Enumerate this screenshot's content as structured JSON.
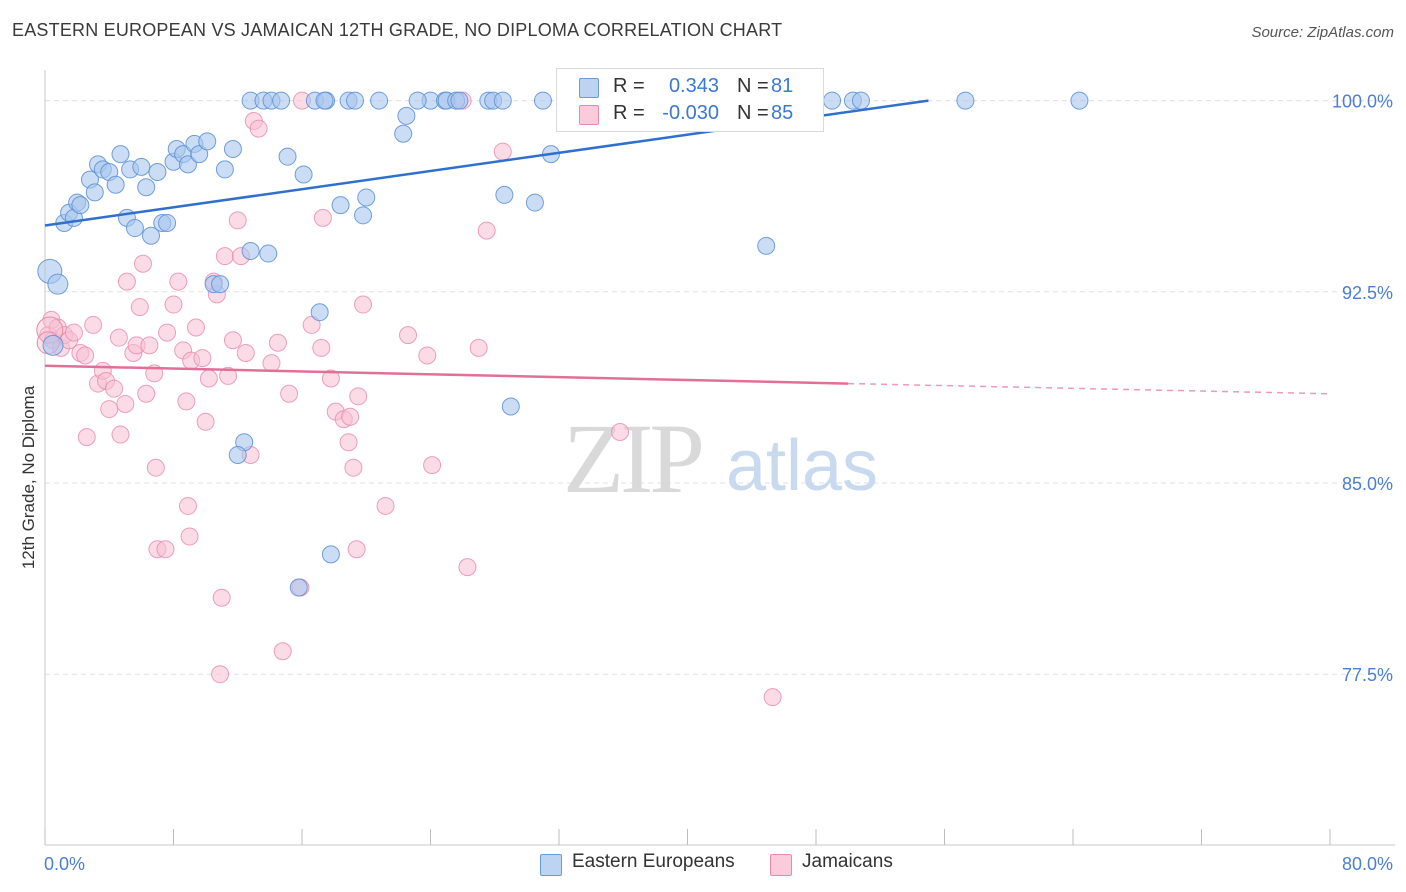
{
  "title": "EASTERN EUROPEAN VS JAMAICAN 12TH GRADE, NO DIPLOMA CORRELATION CHART",
  "source": "Source: ZipAtlas.com",
  "watermark": {
    "zip": "ZIP",
    "atlas": "atlas"
  },
  "legend": {
    "rows": [
      {
        "r_label": "R =",
        "r_value": "0.343",
        "n_label": "N =",
        "n_value": "81"
      },
      {
        "r_label": "R =",
        "r_value": "-0.030",
        "n_label": "N =",
        "n_value": "85"
      }
    ]
  },
  "bottom_legend": [
    {
      "label": "Eastern Europeans"
    },
    {
      "label": "Jamaicans"
    }
  ],
  "chart_data": {
    "type": "scatter",
    "title": "EASTERN EUROPEAN VS JAMAICAN 12TH GRADE, NO DIPLOMA CORRELATION CHART",
    "xlabel": "",
    "ylabel": "12th Grade, No Diploma",
    "xlim": [
      0,
      80
    ],
    "ylim": [
      70.8,
      101.2
    ],
    "x_tick_labels": [
      "0.0%",
      "80.0%"
    ],
    "y_ticks": [
      77.5,
      85.0,
      92.5,
      100.0
    ],
    "y_tick_labels": [
      "77.5%",
      "85.0%",
      "92.5%",
      "100.0%"
    ],
    "grid": true,
    "colors": {
      "blue_fill": "#a9c7ee",
      "blue_stroke": "#5b8fd6",
      "blue_line": "#2f6fd0",
      "pink_fill": "#f7bfd2",
      "pink_stroke": "#e98aab",
      "pink_line": "#e26f98",
      "axis_label": "#4a7fd4",
      "watermark": "#d6d6d6"
    },
    "series": [
      {
        "name": "Eastern Europeans",
        "color": "#a9c7ee",
        "trend": {
          "x": [
            0.0,
            55.0
          ],
          "y": [
            95.1,
            100.0
          ]
        },
        "points": [
          [
            0.3,
            93.3
          ],
          [
            0.5,
            90.4
          ],
          [
            0.8,
            92.8
          ],
          [
            1.2,
            95.2
          ],
          [
            1.5,
            95.6
          ],
          [
            1.8,
            95.4
          ],
          [
            2.0,
            96.0
          ],
          [
            2.2,
            95.9
          ],
          [
            2.8,
            96.9
          ],
          [
            3.1,
            96.4
          ],
          [
            3.3,
            97.5
          ],
          [
            3.6,
            97.3
          ],
          [
            4.0,
            97.2
          ],
          [
            4.4,
            96.7
          ],
          [
            4.7,
            97.9
          ],
          [
            5.1,
            95.4
          ],
          [
            5.3,
            97.3
          ],
          [
            5.6,
            95.0
          ],
          [
            6.0,
            97.4
          ],
          [
            6.3,
            96.6
          ],
          [
            6.6,
            94.7
          ],
          [
            7.0,
            97.2
          ],
          [
            7.3,
            95.2
          ],
          [
            7.6,
            95.2
          ],
          [
            8.0,
            97.6
          ],
          [
            8.2,
            98.1
          ],
          [
            8.6,
            97.9
          ],
          [
            8.9,
            97.5
          ],
          [
            9.3,
            98.3
          ],
          [
            9.6,
            97.9
          ],
          [
            10.1,
            98.4
          ],
          [
            10.5,
            92.8
          ],
          [
            10.9,
            92.8
          ],
          [
            11.2,
            97.3
          ],
          [
            11.7,
            98.1
          ],
          [
            12.4,
            86.6
          ],
          [
            12.0,
            86.1
          ],
          [
            12.8,
            94.1
          ],
          [
            13.9,
            94.0
          ],
          [
            12.8,
            100.0
          ],
          [
            13.6,
            100.0
          ],
          [
            14.1,
            100.0
          ],
          [
            14.7,
            100.0
          ],
          [
            15.1,
            97.8
          ],
          [
            15.8,
            80.9
          ],
          [
            16.1,
            97.1
          ],
          [
            16.8,
            100.0
          ],
          [
            17.1,
            91.7
          ],
          [
            17.5,
            100.0
          ],
          [
            17.4,
            100.0
          ],
          [
            17.8,
            82.2
          ],
          [
            18.4,
            95.9
          ],
          [
            18.9,
            100.0
          ],
          [
            19.3,
            100.0
          ],
          [
            19.8,
            95.5
          ],
          [
            20.0,
            96.2
          ],
          [
            20.8,
            100.0
          ],
          [
            22.3,
            98.7
          ],
          [
            22.5,
            99.4
          ],
          [
            24.0,
            100.0
          ],
          [
            23.2,
            100.0
          ],
          [
            24.9,
            100.0
          ],
          [
            25.0,
            100.0
          ],
          [
            25.6,
            100.0
          ],
          [
            25.8,
            100.0
          ],
          [
            27.6,
            100.0
          ],
          [
            27.9,
            100.0
          ],
          [
            28.5,
            100.0
          ],
          [
            28.6,
            96.3
          ],
          [
            29.0,
            88.0
          ],
          [
            30.5,
            96.0
          ],
          [
            31.0,
            100.0
          ],
          [
            31.5,
            97.9
          ],
          [
            33.6,
            100.0
          ],
          [
            40.6,
            100.0
          ],
          [
            44.9,
            94.3
          ],
          [
            49.0,
            100.0
          ],
          [
            50.3,
            100.0
          ],
          [
            50.8,
            100.0
          ],
          [
            57.3,
            100.0
          ],
          [
            64.4,
            100.0
          ]
        ]
      },
      {
        "name": "Jamaicans",
        "color": "#f7bfd2",
        "trend": {
          "x": [
            0.0,
            50.0
          ],
          "y": [
            89.6,
            88.9
          ]
        },
        "trend_dashed": {
          "x": [
            50.0,
            80.0
          ],
          "y": [
            88.9,
            88.5
          ]
        },
        "points": [
          [
            0.2,
            90.8
          ],
          [
            0.4,
            91.4
          ],
          [
            0.5,
            90.6
          ],
          [
            0.8,
            91.1
          ],
          [
            1.0,
            90.3
          ],
          [
            1.2,
            90.8
          ],
          [
            1.5,
            90.6
          ],
          [
            1.8,
            90.9
          ],
          [
            2.2,
            90.1
          ],
          [
            2.5,
            90.0
          ],
          [
            2.6,
            86.8
          ],
          [
            3.0,
            91.2
          ],
          [
            3.3,
            88.9
          ],
          [
            3.6,
            89.4
          ],
          [
            3.8,
            89.0
          ],
          [
            4.0,
            87.9
          ],
          [
            4.3,
            88.7
          ],
          [
            4.6,
            90.7
          ],
          [
            4.7,
            86.9
          ],
          [
            5.0,
            88.1
          ],
          [
            5.1,
            92.9
          ],
          [
            5.5,
            90.1
          ],
          [
            5.7,
            90.4
          ],
          [
            5.9,
            91.9
          ],
          [
            6.1,
            93.6
          ],
          [
            6.3,
            88.5
          ],
          [
            6.5,
            90.4
          ],
          [
            6.8,
            89.3
          ],
          [
            6.9,
            85.6
          ],
          [
            7.0,
            82.4
          ],
          [
            7.5,
            82.4
          ],
          [
            7.6,
            90.9
          ],
          [
            8.0,
            92.0
          ],
          [
            8.3,
            92.9
          ],
          [
            8.6,
            90.2
          ],
          [
            8.8,
            88.2
          ],
          [
            8.9,
            84.1
          ],
          [
            9.0,
            82.9
          ],
          [
            9.1,
            89.8
          ],
          [
            9.4,
            91.1
          ],
          [
            9.8,
            89.9
          ],
          [
            10.0,
            87.4
          ],
          [
            10.2,
            89.1
          ],
          [
            10.5,
            92.9
          ],
          [
            10.7,
            92.4
          ],
          [
            10.9,
            77.5
          ],
          [
            11.0,
            80.5
          ],
          [
            11.2,
            93.9
          ],
          [
            11.4,
            89.2
          ],
          [
            11.7,
            90.6
          ],
          [
            12.0,
            95.3
          ],
          [
            12.2,
            93.9
          ],
          [
            12.5,
            90.1
          ],
          [
            12.8,
            86.1
          ],
          [
            13.0,
            99.2
          ],
          [
            13.3,
            98.9
          ],
          [
            14.1,
            89.7
          ],
          [
            14.5,
            90.5
          ],
          [
            14.8,
            78.4
          ],
          [
            15.2,
            88.5
          ],
          [
            15.9,
            80.9
          ],
          [
            16.0,
            100.0
          ],
          [
            16.6,
            91.2
          ],
          [
            17.2,
            90.3
          ],
          [
            17.3,
            95.4
          ],
          [
            17.8,
            89.1
          ],
          [
            18.1,
            87.8
          ],
          [
            18.6,
            87.5
          ],
          [
            18.9,
            86.6
          ],
          [
            19.2,
            85.6
          ],
          [
            19.5,
            88.4
          ],
          [
            19.8,
            92.0
          ],
          [
            19.0,
            87.6
          ],
          [
            19.4,
            82.4
          ],
          [
            21.2,
            84.1
          ],
          [
            22.6,
            90.8
          ],
          [
            23.8,
            90.0
          ],
          [
            24.1,
            85.7
          ],
          [
            26.0,
            100.0
          ],
          [
            26.3,
            81.7
          ],
          [
            27.0,
            90.3
          ],
          [
            27.5,
            94.9
          ],
          [
            28.5,
            98.0
          ],
          [
            35.8,
            87.0
          ],
          [
            45.3,
            76.6
          ]
        ]
      }
    ]
  }
}
